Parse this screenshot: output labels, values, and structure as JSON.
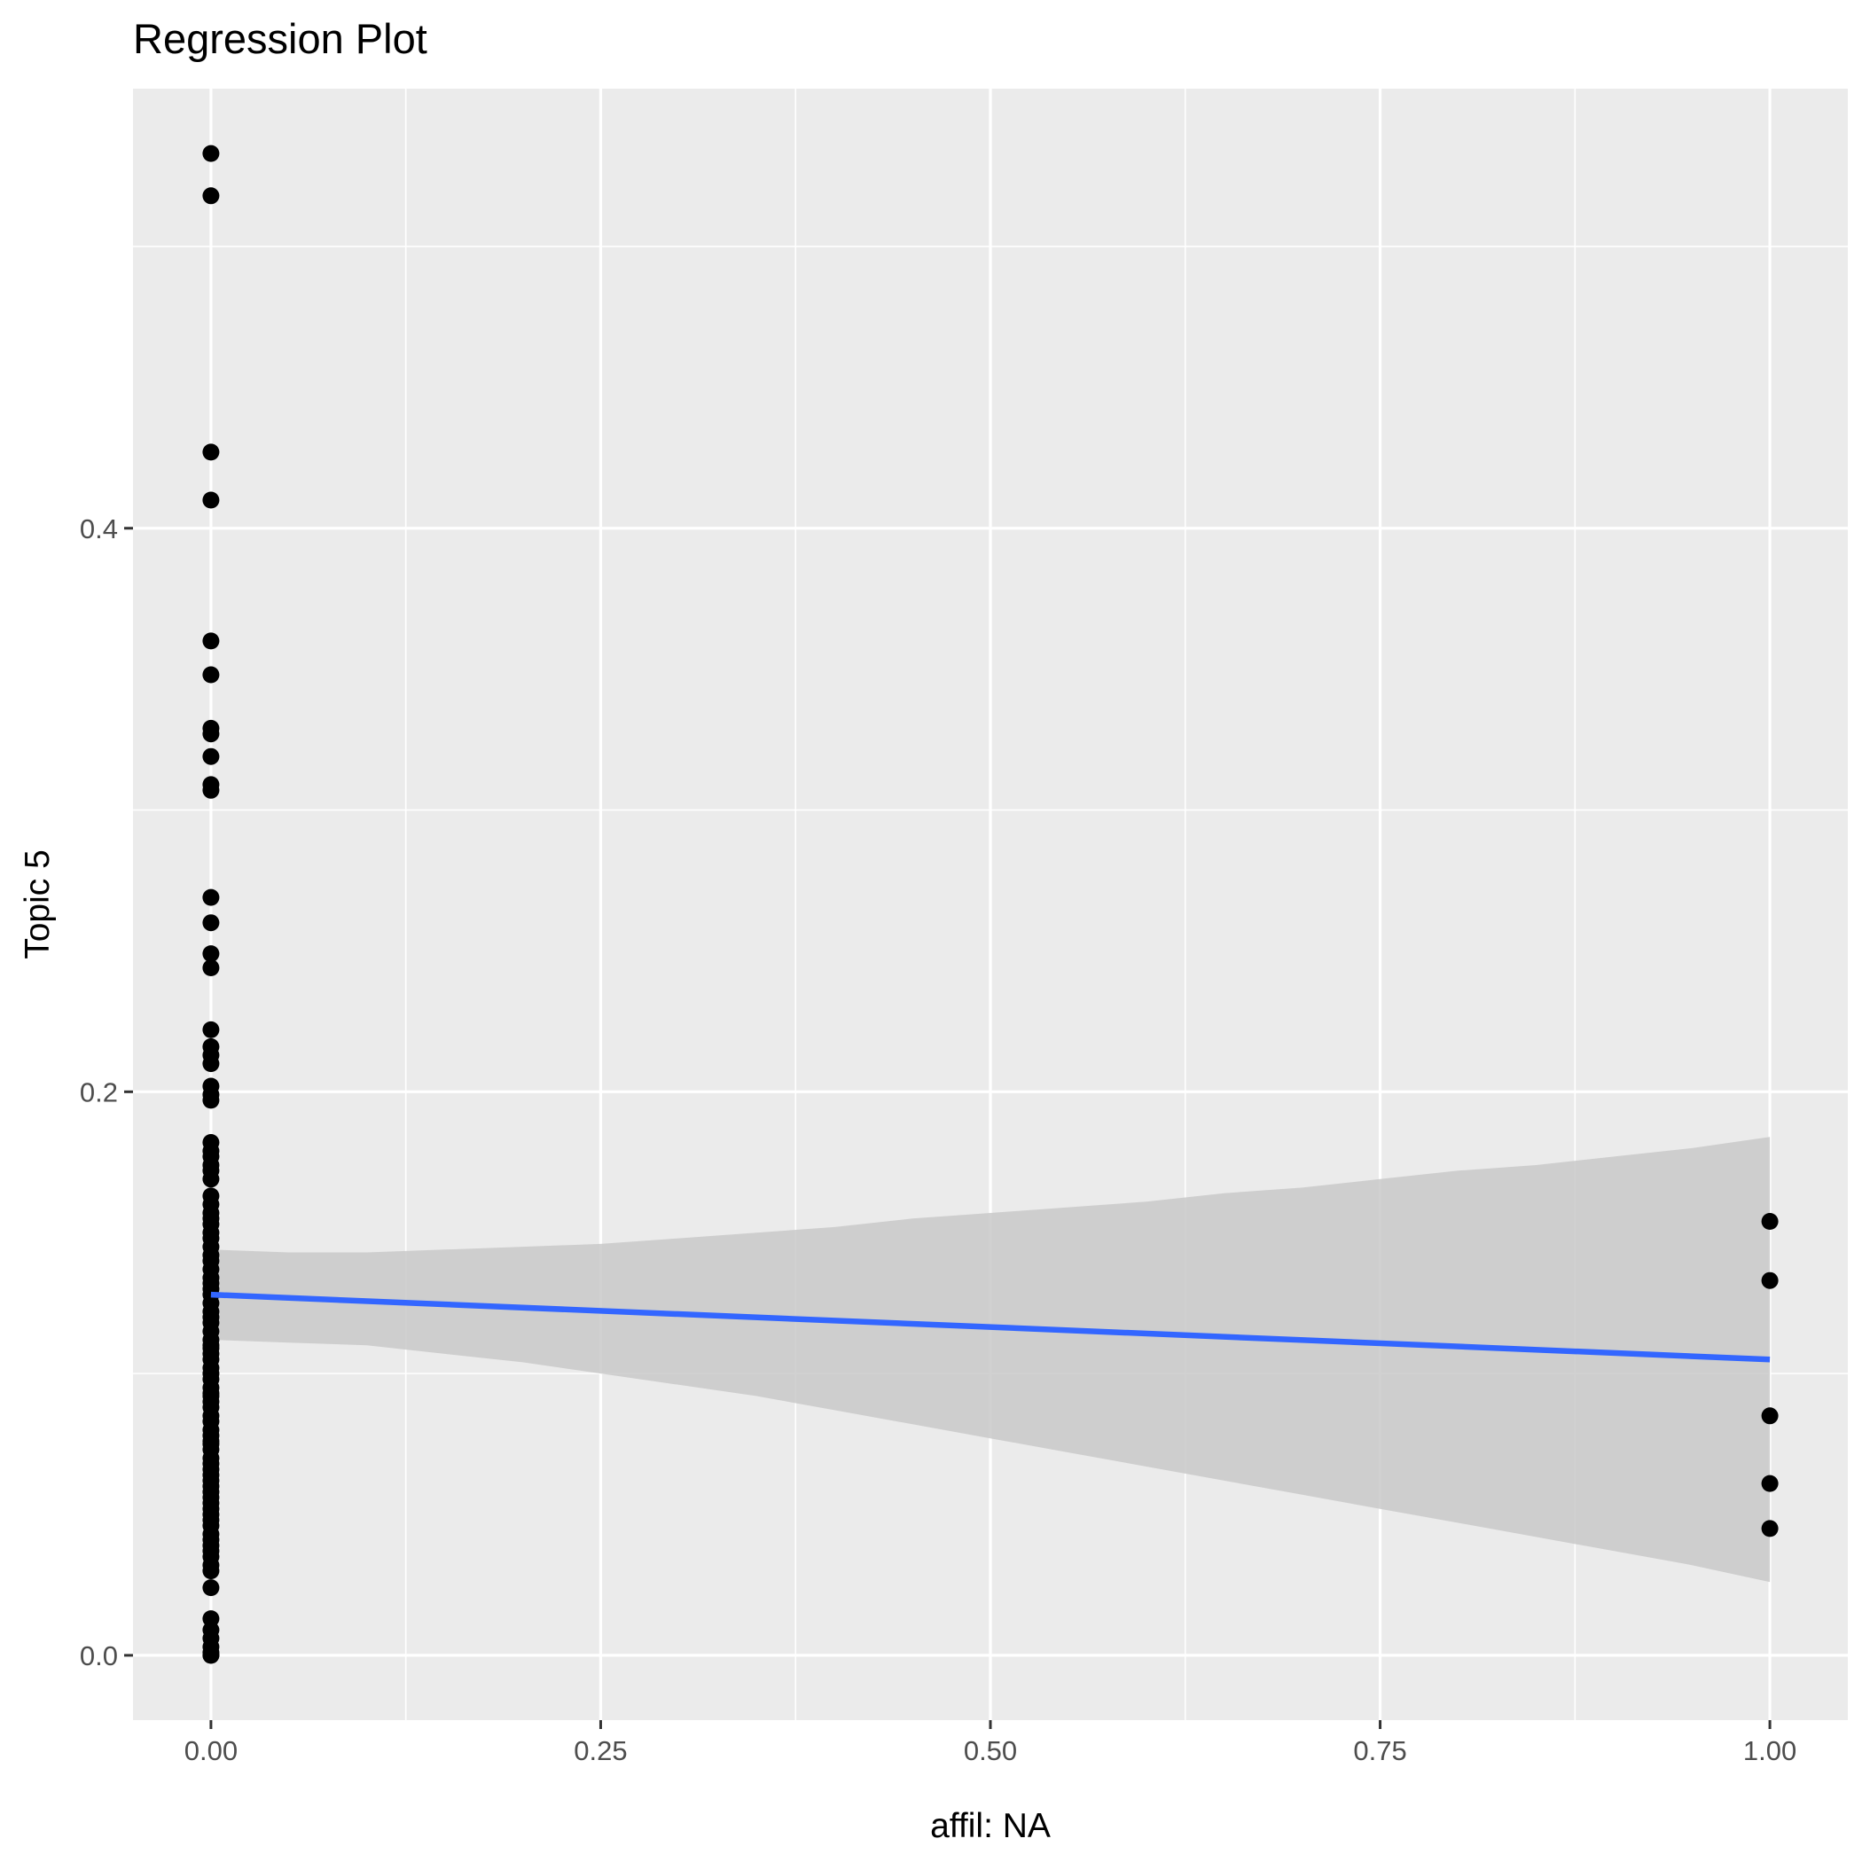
{
  "chart_data": {
    "type": "scatter",
    "title": "Regression Plot",
    "xlabel": "affil: NA",
    "ylabel": "Topic 5",
    "xlim": [
      -0.05,
      1.05
    ],
    "ylim": [
      -0.023,
      0.556
    ],
    "x_ticks": [
      0.0,
      0.25,
      0.5,
      0.75,
      1.0
    ],
    "x_tick_labels": [
      "0.00",
      "0.25",
      "0.50",
      "0.75",
      "1.00"
    ],
    "y_ticks": [
      0.0,
      0.2,
      0.4
    ],
    "y_tick_labels": [
      "0.0",
      "0.2",
      "0.4"
    ],
    "grid": true,
    "legend": "none",
    "points": {
      "x": [
        0,
        0,
        0,
        0,
        0,
        0,
        0,
        0,
        0,
        0,
        0,
        0,
        0,
        0,
        0,
        0,
        0,
        0,
        0,
        0,
        0,
        0,
        0,
        0,
        0,
        0,
        0,
        0,
        0,
        0,
        0,
        0,
        0,
        0,
        0,
        0,
        0,
        0,
        0,
        0,
        0,
        0,
        0,
        0,
        0,
        0,
        0,
        0,
        0,
        0,
        0,
        0,
        0,
        0,
        0,
        0,
        0,
        0,
        0,
        0,
        0,
        0,
        0,
        0,
        0,
        0,
        0,
        0,
        0,
        0,
        0,
        0,
        0,
        0,
        0,
        0,
        0,
        0,
        0,
        0,
        0,
        0,
        0,
        0,
        0,
        0,
        0,
        0,
        0,
        0,
        0,
        0,
        0,
        0,
        0,
        0,
        1,
        1,
        1,
        1,
        1
      ],
      "y": [
        0.533,
        0.518,
        0.427,
        0.41,
        0.36,
        0.348,
        0.329,
        0.327,
        0.319,
        0.309,
        0.307,
        0.269,
        0.26,
        0.249,
        0.244,
        0.222,
        0.216,
        0.213,
        0.21,
        0.202,
        0.199,
        0.197,
        0.182,
        0.179,
        0.177,
        0.174,
        0.172,
        0.169,
        0.163,
        0.16,
        0.157,
        0.155,
        0.153,
        0.15,
        0.148,
        0.145,
        0.142,
        0.14,
        0.137,
        0.134,
        0.132,
        0.13,
        0.128,
        0.125,
        0.122,
        0.12,
        0.118,
        0.115,
        0.112,
        0.11,
        0.109,
        0.107,
        0.105,
        0.102,
        0.1,
        0.098,
        0.095,
        0.093,
        0.092,
        0.09,
        0.088,
        0.085,
        0.083,
        0.08,
        0.078,
        0.076,
        0.075,
        0.073,
        0.07,
        0.068,
        0.066,
        0.064,
        0.062,
        0.06,
        0.058,
        0.056,
        0.054,
        0.052,
        0.05,
        0.048,
        0.046,
        0.043,
        0.041,
        0.039,
        0.037,
        0.035,
        0.032,
        0.03,
        0.024,
        0.013,
        0.009,
        0.006,
        0.003,
        0.001,
        0.0,
        0.0,
        0.154,
        0.133,
        0.085,
        0.061,
        0.045
      ]
    },
    "regression": {
      "x": [
        0,
        1
      ],
      "y": [
        0.128,
        0.105
      ],
      "color": "#3366ff"
    },
    "confidence_band": {
      "x": [
        0,
        0.05,
        0.1,
        0.15,
        0.2,
        0.25,
        0.3,
        0.35,
        0.4,
        0.45,
        0.5,
        0.55,
        0.6,
        0.65,
        0.7,
        0.75,
        0.8,
        0.85,
        0.9,
        0.95,
        1.0
      ],
      "upper": [
        0.144,
        0.143,
        0.143,
        0.144,
        0.145,
        0.146,
        0.148,
        0.15,
        0.152,
        0.155,
        0.157,
        0.159,
        0.161,
        0.164,
        0.166,
        0.169,
        0.172,
        0.174,
        0.177,
        0.18,
        0.184
      ],
      "lower": [
        0.112,
        0.111,
        0.11,
        0.107,
        0.104,
        0.1,
        0.096,
        0.092,
        0.087,
        0.082,
        0.077,
        0.072,
        0.067,
        0.062,
        0.057,
        0.052,
        0.047,
        0.042,
        0.037,
        0.032,
        0.026
      ],
      "color": "#c9c9c9"
    },
    "colors": {
      "panel_background": "#ebebeb",
      "grid": "#ffffff",
      "points": "#000000"
    }
  }
}
